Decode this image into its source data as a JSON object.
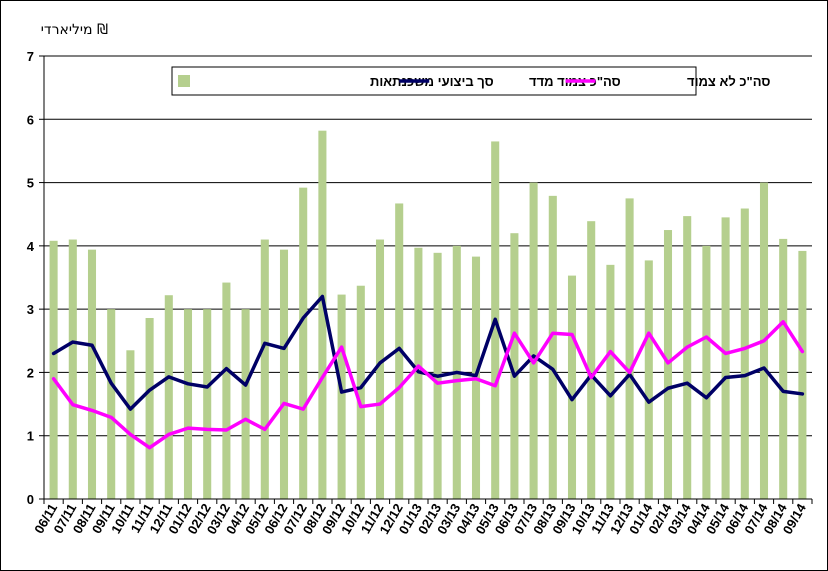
{
  "chart_data": {
    "type": "bar+line",
    "unit_label": "מיליארדי ₪",
    "ylim": [
      0,
      7
    ],
    "yticks": [
      0,
      1,
      2,
      3,
      4,
      5,
      6,
      7
    ],
    "grid": true,
    "legend_position": "top-center",
    "categories": [
      "06/11",
      "07/11",
      "08/11",
      "09/11",
      "10/11",
      "11/11",
      "12/11",
      "01/12",
      "02/12",
      "03/12",
      "04/12",
      "05/12",
      "06/12",
      "07/12",
      "08/12",
      "09/12",
      "10/12",
      "11/12",
      "12/12",
      "01/13",
      "02/13",
      "03/13",
      "04/13",
      "05/13",
      "06/13",
      "07/13",
      "08/13",
      "09/13",
      "10/13",
      "11/13",
      "12/13",
      "01/14",
      "02/14",
      "03/14",
      "04/14",
      "05/14",
      "06/14",
      "07/14",
      "08/14",
      "09/14"
    ],
    "series": [
      {
        "name": "סך ביצועי משכנתאות",
        "type": "bar",
        "color": "#b5cf8e",
        "values": [
          4.08,
          4.1,
          3.94,
          3.0,
          2.35,
          2.86,
          3.22,
          3.0,
          3.0,
          3.42,
          3.0,
          4.1,
          3.94,
          4.92,
          5.82,
          3.23,
          3.37,
          4.1,
          4.67,
          3.97,
          3.89,
          4.0,
          3.83,
          5.65,
          4.2,
          5.0,
          4.79,
          3.53,
          4.39,
          3.7,
          4.75,
          3.77,
          4.25,
          4.47,
          4.0,
          4.45,
          4.59,
          5.0,
          4.11,
          3.92
        ]
      },
      {
        "name": "סה\"כ צמוד מדד",
        "type": "line",
        "color": "#000066",
        "values": [
          2.3,
          2.48,
          2.43,
          1.83,
          1.42,
          1.72,
          1.93,
          1.82,
          1.77,
          2.06,
          1.8,
          2.46,
          2.38,
          2.86,
          3.2,
          1.69,
          1.76,
          2.15,
          2.38,
          2.01,
          1.94,
          2.0,
          1.95,
          2.84,
          1.94,
          2.26,
          2.05,
          1.57,
          1.96,
          1.63,
          1.97,
          1.53,
          1.75,
          1.83,
          1.6,
          1.92,
          1.95,
          2.07,
          1.7,
          1.66
        ]
      },
      {
        "name": "סה\"כ לא צמוד",
        "type": "line",
        "color": "#ff00ff",
        "values": [
          1.9,
          1.49,
          1.4,
          1.29,
          1.02,
          0.81,
          1.02,
          1.12,
          1.1,
          1.09,
          1.26,
          1.1,
          1.51,
          1.42,
          1.92,
          2.4,
          1.46,
          1.5,
          1.76,
          2.1,
          1.83,
          1.87,
          1.9,
          1.79,
          2.62,
          2.15,
          2.62,
          2.6,
          1.92,
          2.33,
          2.0,
          2.62,
          2.15,
          2.4,
          2.56,
          2.3,
          2.38,
          2.5,
          2.8,
          2.33
        ]
      }
    ]
  }
}
